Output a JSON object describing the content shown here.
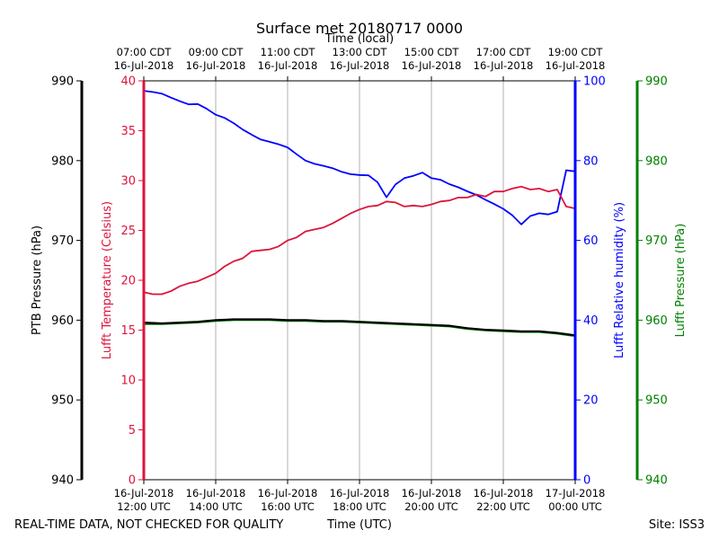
{
  "chart_data": {
    "type": "line",
    "title": "Surface met 20180717 0000",
    "top_axis_label": "Time (local)",
    "xlabel": "Time (UTC)",
    "footer_left": "REAL-TIME DATA, NOT CHECKED FOR QUALITY",
    "footer_right": "Site: ISS3",
    "x_hours_range": [
      0,
      12
    ],
    "x_ticks": [
      {
        "hour": 0,
        "utc_date": "16-Jul-2018",
        "utc_time": "12:00 UTC",
        "local_time": "07:00 CDT",
        "local_date": "16-Jul-2018"
      },
      {
        "hour": 2,
        "utc_date": "16-Jul-2018",
        "utc_time": "14:00 UTC",
        "local_time": "09:00 CDT",
        "local_date": "16-Jul-2018"
      },
      {
        "hour": 4,
        "utc_date": "16-Jul-2018",
        "utc_time": "16:00 UTC",
        "local_time": "11:00 CDT",
        "local_date": "16-Jul-2018"
      },
      {
        "hour": 6,
        "utc_date": "16-Jul-2018",
        "utc_time": "18:00 UTC",
        "local_time": "13:00 CDT",
        "local_date": "16-Jul-2018"
      },
      {
        "hour": 8,
        "utc_date": "16-Jul-2018",
        "utc_time": "20:00 UTC",
        "local_time": "15:00 CDT",
        "local_date": "16-Jul-2018"
      },
      {
        "hour": 10,
        "utc_date": "16-Jul-2018",
        "utc_time": "22:00 UTC",
        "local_time": "17:00 CDT",
        "local_date": "16-Jul-2018"
      },
      {
        "hour": 12,
        "utc_date": "17-Jul-2018",
        "utc_time": "00:00 UTC",
        "local_time": "19:00 CDT",
        "local_date": "16-Jul-2018"
      }
    ],
    "axes": {
      "ptb_pressure": {
        "label": "PTB Pressure (hPa)",
        "range": [
          940,
          990
        ],
        "ticks": [
          940,
          950,
          960,
          970,
          980,
          990
        ],
        "color": "#000000"
      },
      "temperature": {
        "label": "Lufft Temperature (Celsius)",
        "range": [
          0,
          40
        ],
        "ticks": [
          0,
          5,
          10,
          15,
          20,
          25,
          30,
          35,
          40
        ],
        "color": "#dc143c"
      },
      "humidity": {
        "label": "Lufft Relative humidity (%)",
        "range": [
          0,
          100
        ],
        "ticks": [
          0,
          20,
          40,
          60,
          80,
          100
        ],
        "color": "#0000ff"
      },
      "lufft_pressure": {
        "label": "Lufft Pressure (hPa)",
        "range": [
          940,
          990
        ],
        "ticks": [
          940,
          950,
          960,
          970,
          980,
          990
        ],
        "color": "#008000"
      }
    },
    "series": [
      {
        "name": "Lufft Temperature",
        "axis": "temperature",
        "color": "#dc143c",
        "x": [
          0,
          0.25,
          0.5,
          0.75,
          1.0,
          1.25,
          1.5,
          1.75,
          2.0,
          2.25,
          2.5,
          2.75,
          3.0,
          3.25,
          3.5,
          3.75,
          4.0,
          4.25,
          4.5,
          4.75,
          5.0,
          5.25,
          5.5,
          5.75,
          6.0,
          6.25,
          6.5,
          6.75,
          7.0,
          7.25,
          7.5,
          7.75,
          8.0,
          8.25,
          8.5,
          8.75,
          9.0,
          9.25,
          9.5,
          9.75,
          10.0,
          10.25,
          10.5,
          10.75,
          11.0,
          11.25,
          11.5,
          11.75,
          12.0
        ],
        "values": [
          18.8,
          18.6,
          18.6,
          18.9,
          19.4,
          19.7,
          19.9,
          20.3,
          20.7,
          21.4,
          21.9,
          22.2,
          22.9,
          23.0,
          23.1,
          23.4,
          24.0,
          24.3,
          24.9,
          25.1,
          25.3,
          25.7,
          26.2,
          26.7,
          27.1,
          27.4,
          27.5,
          27.9,
          27.8,
          27.4,
          27.5,
          27.4,
          27.6,
          27.9,
          28.0,
          28.3,
          28.3,
          28.6,
          28.4,
          28.9,
          28.9,
          29.2,
          29.4,
          29.1,
          29.2,
          28.9,
          29.1,
          27.4,
          27.2
        ]
      },
      {
        "name": "Lufft Relative humidity",
        "axis": "humidity",
        "color": "#0000ff",
        "x": [
          0,
          0.25,
          0.5,
          0.75,
          1.0,
          1.25,
          1.5,
          1.75,
          2.0,
          2.25,
          2.5,
          2.75,
          3.0,
          3.25,
          3.5,
          3.75,
          4.0,
          4.25,
          4.5,
          4.75,
          5.0,
          5.25,
          5.5,
          5.75,
          6.0,
          6.25,
          6.5,
          6.75,
          7.0,
          7.25,
          7.5,
          7.75,
          8.0,
          8.25,
          8.5,
          8.75,
          9.0,
          9.25,
          9.5,
          9.75,
          10.0,
          10.25,
          10.5,
          10.75,
          11.0,
          11.25,
          11.5,
          11.75,
          12.0
        ],
        "values": [
          97.5,
          97.2,
          96.8,
          95.8,
          94.9,
          94.1,
          94.2,
          93.0,
          91.5,
          90.7,
          89.4,
          87.8,
          86.5,
          85.3,
          84.7,
          84.1,
          83.3,
          81.6,
          80.0,
          79.2,
          78.7,
          78.1,
          77.2,
          76.6,
          76.4,
          76.3,
          74.6,
          70.8,
          74.0,
          75.6,
          76.2,
          77.0,
          75.6,
          75.2,
          74.1,
          73.3,
          72.3,
          71.4,
          70.2,
          69.1,
          67.9,
          66.3,
          64.0,
          66.1,
          66.8,
          66.5,
          67.2,
          77.6,
          77.3
        ]
      },
      {
        "name": "PTB Pressure",
        "axis": "ptb_pressure",
        "color": "#000000",
        "x": [
          0,
          0.5,
          1.0,
          1.5,
          2.0,
          2.5,
          3.0,
          3.5,
          4.0,
          4.5,
          5.0,
          5.5,
          6.0,
          6.5,
          7.0,
          7.5,
          8.0,
          8.5,
          9.0,
          9.5,
          10.0,
          10.5,
          11.0,
          11.5,
          12.0
        ],
        "values": [
          959.7,
          959.6,
          959.7,
          959.8,
          960.0,
          960.1,
          960.1,
          960.1,
          960.0,
          960.0,
          959.9,
          959.9,
          959.8,
          959.7,
          959.6,
          959.5,
          959.4,
          959.3,
          959.0,
          958.8,
          958.7,
          958.6,
          958.6,
          958.4,
          958.1
        ]
      },
      {
        "name": "Lufft Pressure",
        "axis": "lufft_pressure",
        "color": "#008000",
        "x": [
          0,
          0.5,
          1.0,
          1.5,
          2.0,
          2.5,
          3.0,
          3.5,
          4.0,
          4.5,
          5.0,
          5.5,
          6.0,
          6.5,
          7.0,
          7.5,
          8.0,
          8.5,
          9.0,
          9.5,
          10.0,
          10.5,
          11.0,
          11.5,
          12.0
        ],
        "values": [
          959.5,
          959.5,
          959.6,
          959.7,
          959.9,
          960.0,
          960.0,
          960.0,
          959.9,
          959.9,
          959.8,
          959.8,
          959.7,
          959.6,
          959.5,
          959.4,
          959.3,
          959.2,
          958.9,
          958.7,
          958.6,
          958.5,
          958.5,
          958.3,
          958.0
        ]
      }
    ]
  }
}
